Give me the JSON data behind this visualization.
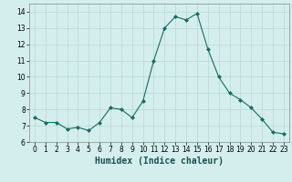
{
  "x": [
    0,
    1,
    2,
    3,
    4,
    5,
    6,
    7,
    8,
    9,
    10,
    11,
    12,
    13,
    14,
    15,
    16,
    17,
    18,
    19,
    20,
    21,
    22,
    23
  ],
  "y": [
    7.5,
    7.2,
    7.2,
    6.8,
    6.9,
    6.7,
    7.2,
    8.1,
    8.0,
    7.5,
    8.5,
    11.0,
    13.0,
    13.7,
    13.5,
    13.9,
    11.7,
    10.0,
    9.0,
    8.6,
    8.1,
    7.4,
    6.6,
    6.5
  ],
  "line_color": "#1a6b5e",
  "marker": "D",
  "marker_size": 2.0,
  "bg_color": "#d4eeee",
  "grid_color": "#b8d8d8",
  "xlabel": "Humidex (Indice chaleur)",
  "xlim": [
    -0.5,
    23.5
  ],
  "ylim": [
    6,
    14.5
  ],
  "yticks": [
    6,
    7,
    8,
    9,
    10,
    11,
    12,
    13,
    14
  ],
  "xticks": [
    0,
    1,
    2,
    3,
    4,
    5,
    6,
    7,
    8,
    9,
    10,
    11,
    12,
    13,
    14,
    15,
    16,
    17,
    18,
    19,
    20,
    21,
    22,
    23
  ],
  "tick_label_fontsize": 5.5,
  "xlabel_fontsize": 7.0,
  "linewidth": 0.8
}
